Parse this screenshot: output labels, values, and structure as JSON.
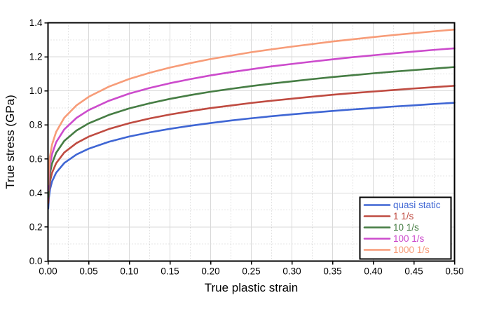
{
  "chart_data": {
    "type": "line",
    "title": "",
    "xlabel": "True plastic strain",
    "ylabel": "True stress (GPa)",
    "xlim": [
      0,
      0.5
    ],
    "ylim": [
      0,
      1.4
    ],
    "x_tick_labels": [
      "0.00",
      "0.05",
      "0.10",
      "0.15",
      "0.20",
      "0.25",
      "0.30",
      "0.35",
      "0.40",
      "0.45",
      "0.50"
    ],
    "y_tick_labels": [
      "0.0",
      "0.2",
      "0.4",
      "0.6",
      "0.8",
      "1.0",
      "1.2",
      "1.4"
    ],
    "grid": {
      "major": "solid",
      "minor": "dotted",
      "major_color": "#d9d9d9",
      "minor_color": "#c9c9c9"
    },
    "frame_color": "#000000",
    "legend": {
      "position": "bottom-right",
      "background": "#ffffff",
      "border_color": "#000000"
    },
    "x": [
      0.0003,
      0.001,
      0.0025,
      0.005,
      0.01,
      0.02,
      0.035,
      0.05,
      0.075,
      0.1,
      0.125,
      0.15,
      0.175,
      0.2,
      0.225,
      0.25,
      0.275,
      0.3,
      0.325,
      0.35,
      0.375,
      0.4,
      0.425,
      0.45,
      0.475,
      0.5
    ],
    "series": [
      {
        "name": "quasi static",
        "color": "#3f66d4",
        "values": [
          0.308,
          0.368,
          0.422,
          0.468,
          0.519,
          0.576,
          0.626,
          0.66,
          0.701,
          0.732,
          0.756,
          0.777,
          0.795,
          0.811,
          0.826,
          0.839,
          0.851,
          0.862,
          0.872,
          0.882,
          0.891,
          0.899,
          0.908,
          0.915,
          0.923,
          0.93
        ]
      },
      {
        "name": "1 1/s",
        "color": "#bf4b41",
        "values": [
          0.341,
          0.408,
          0.468,
          0.519,
          0.575,
          0.638,
          0.693,
          0.731,
          0.776,
          0.81,
          0.838,
          0.861,
          0.881,
          0.899,
          0.914,
          0.929,
          0.942,
          0.954,
          0.966,
          0.977,
          0.987,
          0.996,
          1.005,
          1.014,
          1.022,
          1.03
        ]
      },
      {
        "name": "10 1/s",
        "color": "#467d44",
        "values": [
          0.377,
          0.452,
          0.518,
          0.574,
          0.636,
          0.706,
          0.767,
          0.809,
          0.859,
          0.897,
          0.927,
          0.953,
          0.975,
          0.995,
          1.012,
          1.028,
          1.043,
          1.056,
          1.069,
          1.081,
          1.092,
          1.103,
          1.113,
          1.122,
          1.131,
          1.14
        ]
      },
      {
        "name": "100 1/s",
        "color": "#cc4bcc",
        "values": [
          0.414,
          0.495,
          0.568,
          0.629,
          0.698,
          0.774,
          0.841,
          0.887,
          0.942,
          0.984,
          1.017,
          1.045,
          1.069,
          1.091,
          1.11,
          1.127,
          1.144,
          1.158,
          1.172,
          1.185,
          1.198,
          1.209,
          1.22,
          1.231,
          1.241,
          1.25
        ]
      },
      {
        "name": "1000 1/s",
        "color": "#f79c78",
        "values": [
          0.45,
          0.539,
          0.618,
          0.685,
          0.759,
          0.842,
          0.915,
          0.965,
          1.025,
          1.07,
          1.106,
          1.137,
          1.163,
          1.187,
          1.207,
          1.227,
          1.244,
          1.26,
          1.275,
          1.29,
          1.303,
          1.316,
          1.328,
          1.339,
          1.35,
          1.36
        ]
      }
    ]
  }
}
